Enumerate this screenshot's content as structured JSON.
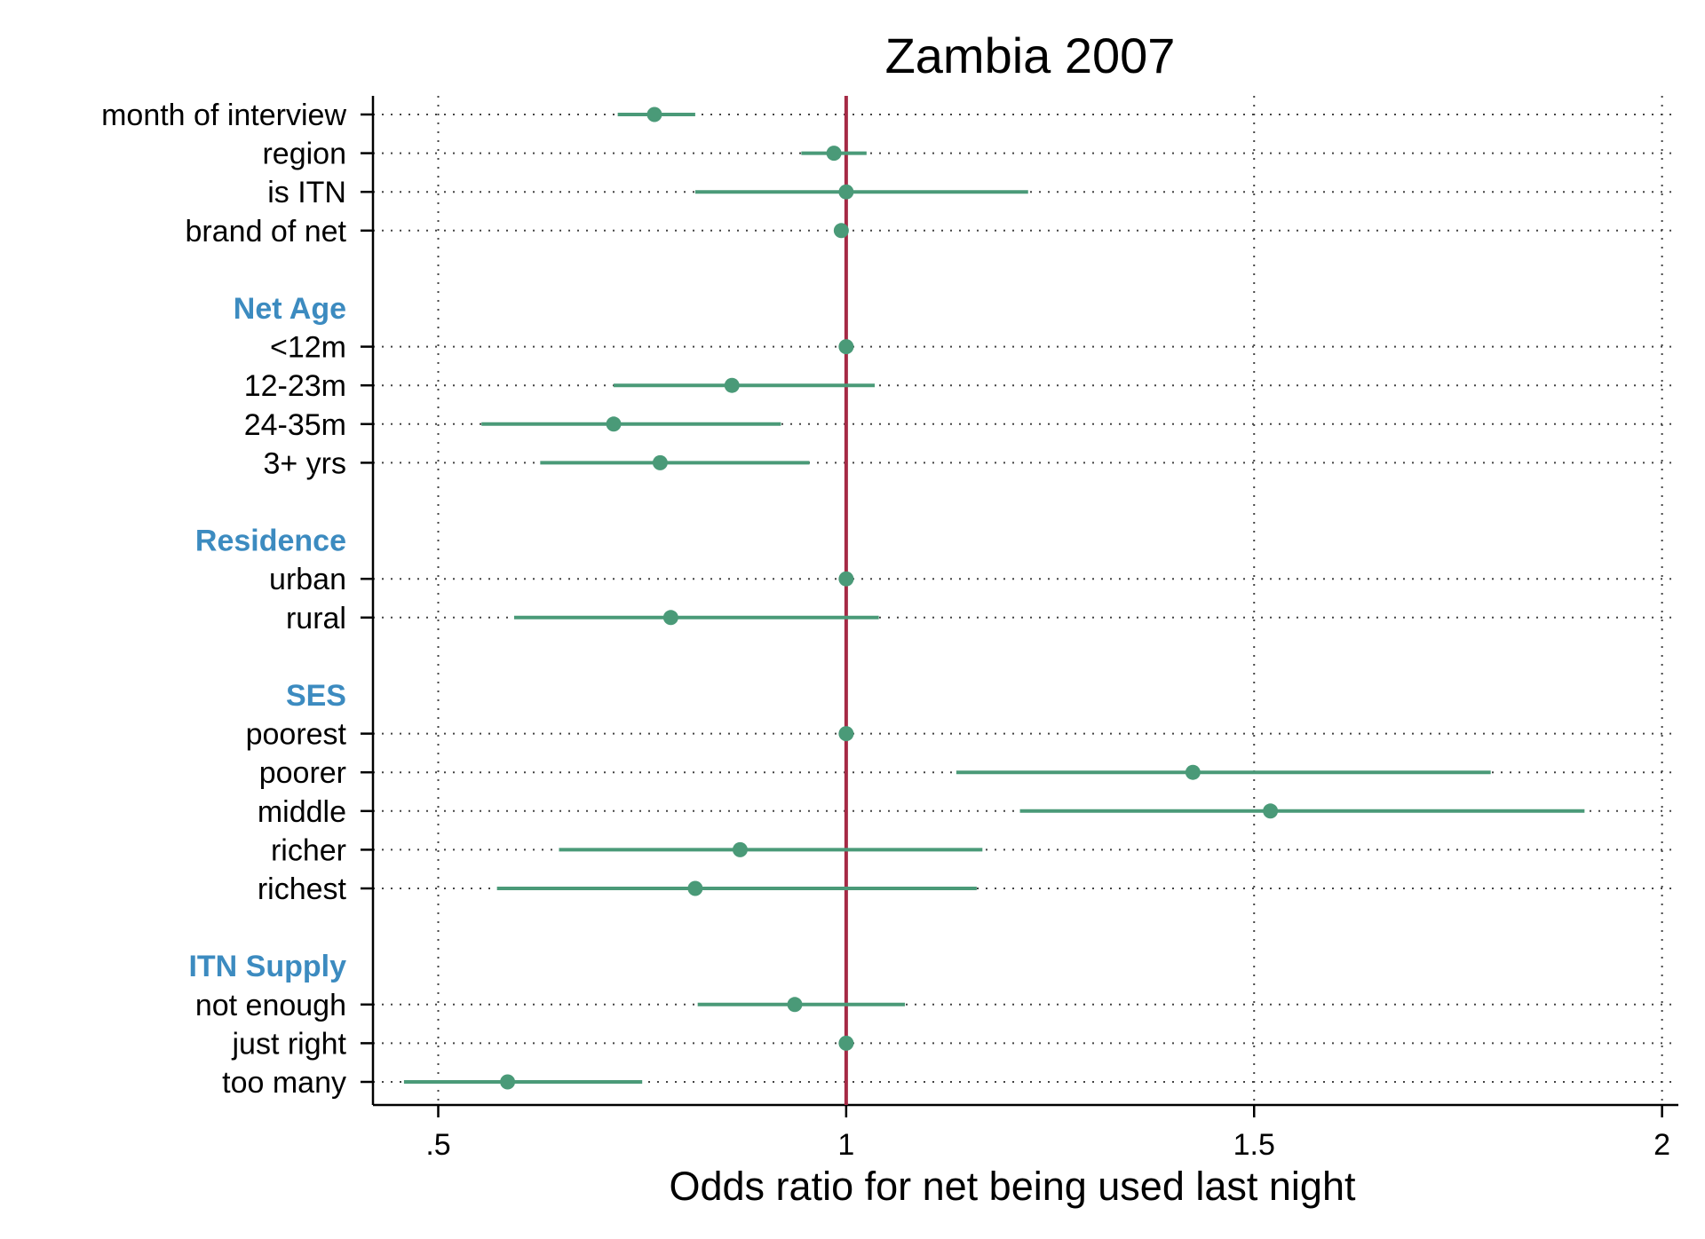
{
  "chart_data": {
    "type": "forest",
    "title": "Zambia 2007",
    "xlabel": "Odds ratio for net being used last night",
    "xlim": [
      0.42,
      2.02
    ],
    "xticks": [
      0.5,
      1,
      1.5,
      2
    ],
    "xtick_labels": [
      ".5",
      "1",
      "1.5",
      "2"
    ],
    "reference_line": 1,
    "grid": "dotted",
    "colors": {
      "marker": "#4a9a78",
      "reference": "#a52a45",
      "group_label": "#3c8bc0",
      "axis": "#000000",
      "grid": "#444444"
    },
    "rows": [
      {
        "label": "month of interview",
        "kind": "item",
        "or": 0.765,
        "lo": 0.72,
        "hi": 0.815
      },
      {
        "label": "region",
        "kind": "item",
        "or": 0.985,
        "lo": 0.945,
        "hi": 1.025
      },
      {
        "label": "is ITN",
        "kind": "item",
        "or": 1.0,
        "lo": 0.815,
        "hi": 1.223
      },
      {
        "label": "brand of net",
        "kind": "item",
        "or": 0.994,
        "lo": 0.988,
        "hi": 1.0
      },
      {
        "label": "",
        "kind": "spacer"
      },
      {
        "label": "Net Age",
        "kind": "group"
      },
      {
        "label": "<12m",
        "kind": "item",
        "or": 1.0,
        "lo": 1.0,
        "hi": 1.0
      },
      {
        "label": "12-23m",
        "kind": "item",
        "or": 0.86,
        "lo": 0.715,
        "hi": 1.035
      },
      {
        "label": "24-35m",
        "kind": "item",
        "or": 0.715,
        "lo": 0.553,
        "hi": 0.92
      },
      {
        "label": "3+ yrs",
        "kind": "item",
        "or": 0.772,
        "lo": 0.625,
        "hi": 0.955
      },
      {
        "label": "",
        "kind": "spacer"
      },
      {
        "label": "Residence",
        "kind": "group"
      },
      {
        "label": "urban",
        "kind": "item",
        "or": 1.0,
        "lo": 1.0,
        "hi": 1.0
      },
      {
        "label": "rural",
        "kind": "item",
        "or": 0.785,
        "lo": 0.593,
        "hi": 1.04
      },
      {
        "label": "",
        "kind": "spacer"
      },
      {
        "label": "SES",
        "kind": "group"
      },
      {
        "label": "poorest",
        "kind": "item",
        "or": 1.0,
        "lo": 1.0,
        "hi": 1.0
      },
      {
        "label": "poorer",
        "kind": "item",
        "or": 1.425,
        "lo": 1.135,
        "hi": 1.79
      },
      {
        "label": "middle",
        "kind": "item",
        "or": 1.52,
        "lo": 1.213,
        "hi": 1.905
      },
      {
        "label": "richer",
        "kind": "item",
        "or": 0.87,
        "lo": 0.648,
        "hi": 1.167
      },
      {
        "label": "richest",
        "kind": "item",
        "or": 0.815,
        "lo": 0.572,
        "hi": 1.16
      },
      {
        "label": "",
        "kind": "spacer"
      },
      {
        "label": "ITN Supply",
        "kind": "group"
      },
      {
        "label": "not enough",
        "kind": "item",
        "or": 0.937,
        "lo": 0.818,
        "hi": 1.072
      },
      {
        "label": "just right",
        "kind": "item",
        "or": 1.0,
        "lo": 1.0,
        "hi": 1.0
      },
      {
        "label": "too many",
        "kind": "item",
        "or": 0.585,
        "lo": 0.458,
        "hi": 0.75
      }
    ]
  }
}
